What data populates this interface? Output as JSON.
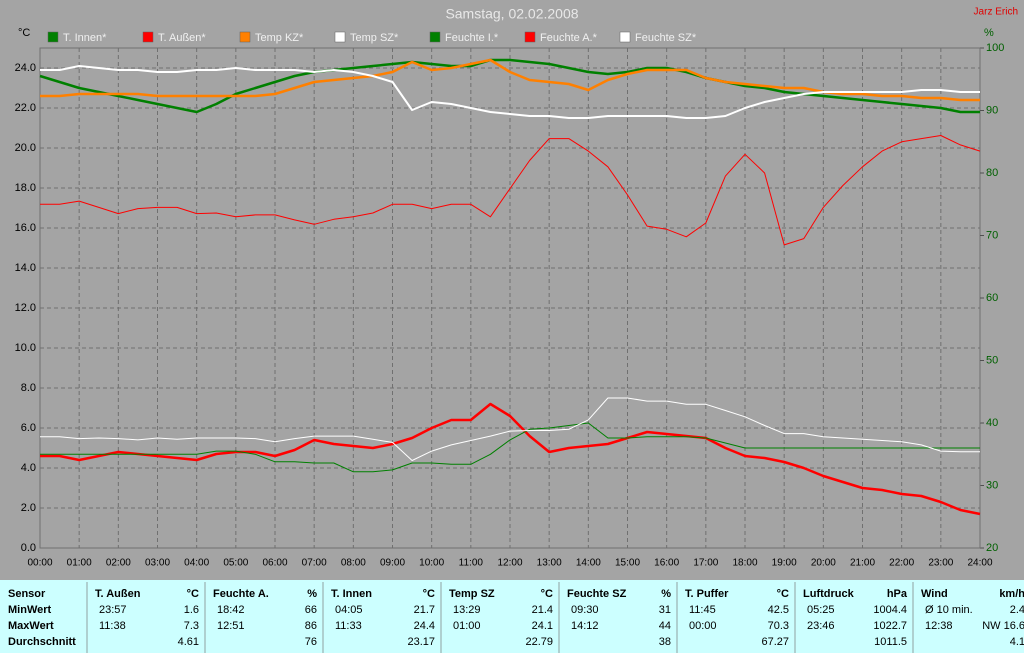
{
  "author": "Jarz Erich",
  "chart_data": {
    "type": "line",
    "title": "Samstag, 02.02.2008",
    "ylabel": "°C",
    "y2label": "%",
    "x": [
      0,
      0.5,
      1,
      1.5,
      2,
      2.5,
      3,
      3.5,
      4,
      4.5,
      5,
      5.5,
      6,
      6.5,
      7,
      7.5,
      8,
      8.5,
      9,
      9.5,
      10,
      10.5,
      11,
      11.5,
      12,
      12.5,
      13,
      13.5,
      14,
      14.5,
      15,
      15.5,
      16,
      16.5,
      17,
      17.5,
      18,
      18.5,
      19,
      19.5,
      20,
      20.5,
      21,
      21.5,
      22,
      22.5,
      23,
      23.5,
      24
    ],
    "xlim": [
      0,
      24
    ],
    "xticks": [
      {
        "value": 0,
        "label": "00:00"
      },
      {
        "value": 1,
        "label": "01:00"
      },
      {
        "value": 2,
        "label": "02:00"
      },
      {
        "value": 3,
        "label": "03:00"
      },
      {
        "value": 4,
        "label": "04:00"
      },
      {
        "value": 5,
        "label": "05:00"
      },
      {
        "value": 6,
        "label": "06:00"
      },
      {
        "value": 7,
        "label": "07:00"
      },
      {
        "value": 8,
        "label": "08:00"
      },
      {
        "value": 9,
        "label": "09:00"
      },
      {
        "value": 10,
        "label": "10:00"
      },
      {
        "value": 11,
        "label": "11:00"
      },
      {
        "value": 12,
        "label": "12:00"
      },
      {
        "value": 13,
        "label": "13:00"
      },
      {
        "value": 14,
        "label": "14:00"
      },
      {
        "value": 15,
        "label": "15:00"
      },
      {
        "value": 16,
        "label": "16:00"
      },
      {
        "value": 17,
        "label": "17:00"
      },
      {
        "value": 18,
        "label": "18:00"
      },
      {
        "value": 19,
        "label": "19:00"
      },
      {
        "value": 20,
        "label": "20:00"
      },
      {
        "value": 21,
        "label": "21:00"
      },
      {
        "value": 22,
        "label": "22:00"
      },
      {
        "value": 23,
        "label": "23:00"
      },
      {
        "value": 24,
        "label": "24:00"
      }
    ],
    "ylim": [
      0,
      25
    ],
    "yticks": [
      {
        "value": 0,
        "label": "0.0"
      },
      {
        "value": 2,
        "label": "2.0"
      },
      {
        "value": 4,
        "label": "4.0"
      },
      {
        "value": 6,
        "label": "6.0"
      },
      {
        "value": 8,
        "label": "8.0"
      },
      {
        "value": 10,
        "label": "10.0"
      },
      {
        "value": 12,
        "label": "12.0"
      },
      {
        "value": 14,
        "label": "14.0"
      },
      {
        "value": 16,
        "label": "16.0"
      },
      {
        "value": 18,
        "label": "18.0"
      },
      {
        "value": 20,
        "label": "20.0"
      },
      {
        "value": 22,
        "label": "22.0"
      },
      {
        "value": 24,
        "label": "24.0"
      }
    ],
    "y2lim": [
      20,
      100
    ],
    "y2ticks": [
      20,
      30,
      40,
      50,
      60,
      70,
      80,
      90,
      100
    ],
    "grid": true,
    "series": [
      {
        "name": "T. Innen*",
        "color": "#008000",
        "line_width": 2.5,
        "values": [
          23.6,
          23.3,
          23.0,
          22.8,
          22.6,
          22.4,
          22.2,
          22.0,
          21.8,
          22.2,
          22.7,
          23.0,
          23.3,
          23.6,
          23.8,
          23.9,
          24.0,
          24.1,
          24.2,
          24.3,
          24.2,
          24.1,
          24.1,
          24.4,
          24.4,
          24.3,
          24.2,
          24.0,
          23.8,
          23.7,
          23.8,
          24.0,
          24.0,
          23.8,
          23.5,
          23.3,
          23.1,
          23.0,
          22.8,
          22.7,
          22.6,
          22.5,
          22.4,
          22.3,
          22.2,
          22.1,
          22.0,
          21.8,
          21.8
        ]
      },
      {
        "name": "T. Außen*",
        "color": "#ff0000",
        "line_width": 2.5,
        "values": [
          4.6,
          4.6,
          4.4,
          4.6,
          4.8,
          4.7,
          4.6,
          4.5,
          4.4,
          4.7,
          4.8,
          4.8,
          4.6,
          4.9,
          5.4,
          5.2,
          5.1,
          5.0,
          5.2,
          5.5,
          6.0,
          6.4,
          6.4,
          7.2,
          6.6,
          5.6,
          4.8,
          5.0,
          5.1,
          5.2,
          5.5,
          5.8,
          5.7,
          5.6,
          5.5,
          5.0,
          4.6,
          4.5,
          4.3,
          4.0,
          3.6,
          3.3,
          3.0,
          2.9,
          2.7,
          2.6,
          2.3,
          1.9,
          1.7
        ]
      },
      {
        "name": "Temp KZ*",
        "color": "#ff8000",
        "line_width": 2.5,
        "values": [
          22.6,
          22.6,
          22.7,
          22.7,
          22.7,
          22.7,
          22.6,
          22.6,
          22.6,
          22.6,
          22.6,
          22.6,
          22.7,
          23.0,
          23.3,
          23.4,
          23.5,
          23.6,
          23.8,
          24.3,
          23.9,
          24.0,
          24.2,
          24.4,
          23.8,
          23.4,
          23.3,
          23.2,
          22.9,
          23.4,
          23.7,
          23.9,
          23.9,
          23.9,
          23.5,
          23.3,
          23.2,
          23.1,
          23.0,
          23.0,
          22.8,
          22.7,
          22.7,
          22.6,
          22.6,
          22.5,
          22.5,
          22.4,
          22.4
        ]
      },
      {
        "name": "Temp SZ*",
        "color": "#ffffff",
        "line_width": 2,
        "values": [
          23.9,
          23.9,
          24.1,
          24.0,
          23.9,
          23.9,
          23.8,
          23.8,
          23.9,
          23.9,
          24.0,
          23.9,
          23.9,
          23.9,
          23.8,
          23.9,
          23.8,
          23.6,
          23.3,
          21.9,
          22.3,
          22.2,
          22.0,
          21.8,
          21.7,
          21.6,
          21.6,
          21.5,
          21.5,
          21.6,
          21.6,
          21.6,
          21.6,
          21.5,
          21.5,
          21.6,
          22.0,
          22.3,
          22.5,
          22.7,
          22.8,
          22.8,
          22.8,
          22.8,
          22.8,
          22.9,
          22.9,
          22.8,
          22.8
        ]
      },
      {
        "name": "Feuchte I.*",
        "color": "#008000",
        "line_width": 1,
        "axis": "y2",
        "values": [
          35,
          35,
          35,
          35,
          35,
          35,
          35,
          35,
          35,
          35.5,
          35.5,
          35,
          33.8,
          33.8,
          33.6,
          33.6,
          32.2,
          32.2,
          32.5,
          33.6,
          33.6,
          33.4,
          33.4,
          35,
          37.3,
          39,
          39.2,
          39.6,
          40,
          37.6,
          37.6,
          37.8,
          37.8,
          37.8,
          37.6,
          36.8,
          36,
          36,
          36,
          36,
          36,
          36,
          36,
          36,
          36,
          36,
          36,
          36,
          36
        ]
      },
      {
        "name": "Feuchte A.*",
        "color": "#ff0000",
        "line_width": 1,
        "axis": "y2",
        "values": [
          75,
          75,
          75.5,
          74.5,
          73.5,
          74.3,
          74.5,
          74.5,
          73.5,
          73.6,
          73,
          73.3,
          73.3,
          72.5,
          71.8,
          72.6,
          73,
          73.6,
          75,
          75,
          74.3,
          75,
          75,
          73,
          77.5,
          82,
          85.5,
          85.5,
          83.5,
          81,
          76.5,
          71.5,
          71,
          69.8,
          72,
          79.5,
          83,
          80,
          68.5,
          69.5,
          74.5,
          78,
          81,
          83.5,
          85,
          85.5,
          86,
          84.5,
          83.5
        ]
      },
      {
        "name": "Feuchte SZ*",
        "color": "#ffffff",
        "line_width": 1,
        "axis": "y2",
        "values": [
          37.8,
          37.8,
          37.5,
          37.6,
          37.5,
          37.3,
          37.6,
          37.4,
          37.6,
          37.6,
          37.6,
          37.5,
          37.0,
          37.5,
          37.9,
          37.9,
          37.9,
          37.4,
          36.9,
          34,
          35.5,
          36.5,
          37.2,
          37.9,
          38.7,
          38.8,
          38.8,
          39,
          40.5,
          44,
          44,
          43.5,
          43.5,
          43,
          43,
          42,
          41,
          39.6,
          38.3,
          38.3,
          37.8,
          37.6,
          37.4,
          37.2,
          37,
          36.5,
          35.5,
          35.4,
          35.4
        ]
      }
    ]
  },
  "table": {
    "row_labels": [
      "Sensor",
      "MinWert",
      "MaxWert",
      "Durchschnitt"
    ],
    "columns": [
      {
        "name": "T. Außen",
        "unit": "°C",
        "min_time": "23:57",
        "min": 1.6,
        "max_time": "11:38",
        "max": 7.3,
        "avg": 4.61
      },
      {
        "name": "Feuchte A.",
        "unit": "%",
        "min_time": "18:42",
        "min": 66,
        "max_time": "12:51",
        "max": 86,
        "avg": 76
      },
      {
        "name": "T. Innen",
        "unit": "°C",
        "min_time": "04:05",
        "min": 21.7,
        "max_time": "11:33",
        "max": 24.4,
        "avg": 23.17
      },
      {
        "name": "Temp SZ",
        "unit": "°C",
        "min_time": "13:29",
        "min": 21.4,
        "max_time": "01:00",
        "max": 24.1,
        "avg": 22.79
      },
      {
        "name": "Feuchte SZ",
        "unit": "%",
        "min_time": "09:30",
        "min": 31,
        "max_time": "14:12",
        "max": 44,
        "avg": 38
      },
      {
        "name": "T. Puffer",
        "unit": "°C",
        "min_time": "11:45",
        "min": 42.5,
        "max_time": "00:00",
        "max": 70.3,
        "avg": 67.27
      },
      {
        "name": "Luftdruck",
        "unit": "hPa",
        "min_time": "05:25",
        "min": 1004.4,
        "max_time": "23:46",
        "max": 1022.7,
        "avg": 1011.5
      },
      {
        "name": "Wind",
        "unit": "km/h",
        "min_time": "Ø 10 min.",
        "min": 2.4,
        "max_time": "12:38",
        "max": "NW 16.6",
        "avg": 4.1
      }
    ]
  }
}
